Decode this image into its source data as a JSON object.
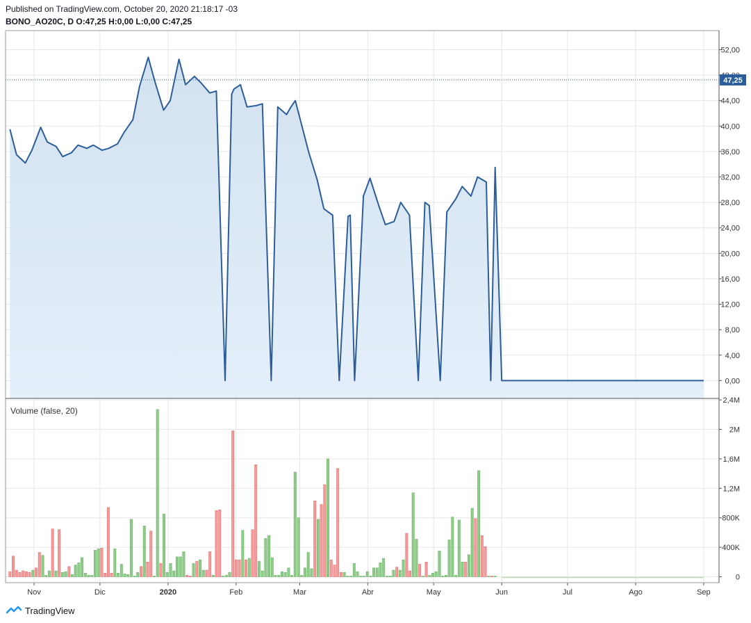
{
  "header": {
    "published": "Published on TradingView.com, October 20, 2020 21:18:17 -03",
    "symbol": "BONO_AO20C, D",
    "ohlc": "O:47,25 H:0,00 L:0,00 C:47,25"
  },
  "footer": {
    "brand": "TradingView"
  },
  "colors": {
    "line": "#2a5d99",
    "area": "#dbe8f5",
    "up": "#8fcc8a",
    "down": "#f49a9a",
    "grid": "#e6e6e6",
    "axis": "#555555",
    "lastPriceBg": "#2a5d99"
  },
  "chart_data": [
    {
      "type": "area",
      "symbol": "BONO_AO20C, D",
      "x": [
        "2019-10-21",
        "2019-10-24",
        "2019-10-28",
        "2019-10-31",
        "2019-11-04",
        "2019-11-07",
        "2019-11-11",
        "2019-11-14",
        "2019-11-18",
        "2019-11-21",
        "2019-11-25",
        "2019-11-28",
        "2019-12-02",
        "2019-12-05",
        "2019-12-09",
        "2019-12-12",
        "2019-12-16",
        "2019-12-19",
        "2019-12-23",
        "2019-12-26",
        "2019-12-30",
        "2020-01-02",
        "2020-01-06",
        "2020-01-09",
        "2020-01-13",
        "2020-01-16",
        "2020-01-20",
        "2020-01-23",
        "2020-01-27",
        "2020-01-30",
        "2020-01-31",
        "2020-02-03",
        "2020-02-06",
        "2020-02-10",
        "2020-02-13",
        "2020-02-17",
        "2020-02-20",
        "2020-02-24",
        "2020-02-26",
        "2020-02-28",
        "2020-03-02",
        "2020-03-05",
        "2020-03-09",
        "2020-03-12",
        "2020-03-16",
        "2020-03-19",
        "2020-03-23",
        "2020-03-24",
        "2020-03-26",
        "2020-03-30",
        "2020-04-02",
        "2020-04-06",
        "2020-04-09",
        "2020-04-13",
        "2020-04-16",
        "2020-04-20",
        "2020-04-24",
        "2020-04-27",
        "2020-04-29",
        "2020-05-04",
        "2020-05-07",
        "2020-05-11",
        "2020-05-14",
        "2020-05-18",
        "2020-05-21",
        "2020-05-25",
        "2020-05-27",
        "2020-05-29",
        "2020-06-01",
        "2020-09-01"
      ],
      "y": [
        39.5,
        35.5,
        34.2,
        36.2,
        39.8,
        37.5,
        36.8,
        35.2,
        35.8,
        37.0,
        36.5,
        37.0,
        36.2,
        36.5,
        37.2,
        39.0,
        41.0,
        46.2,
        50.8,
        47.0,
        42.5,
        44.0,
        50.5,
        46.5,
        47.8,
        46.8,
        45.2,
        45.5,
        0,
        45.0,
        45.8,
        46.5,
        43.0,
        43.2,
        43.5,
        0,
        43.0,
        41.8,
        43.0,
        44.0,
        40.0,
        36.0,
        31.5,
        27.0,
        26.0,
        0,
        25.8,
        26.0,
        0,
        29.0,
        31.8,
        27.5,
        24.5,
        25.0,
        28.0,
        26.0,
        0,
        28.0,
        27.5,
        0,
        26.5,
        28.5,
        30.5,
        29.0,
        32.0,
        31.2,
        0,
        33.5,
        0,
        0
      ],
      "ylim": [
        -2.8,
        55.0
      ],
      "ticks_y": [
        "0,00",
        "4,00",
        "8,00",
        "12,00",
        "16,00",
        "20,00",
        "24,00",
        "28,00",
        "32,00",
        "36,00",
        "40,00",
        "44,00",
        "48,00",
        "52,00"
      ],
      "last_price": "47,25",
      "last_price_value": 47.25
    },
    {
      "type": "bar",
      "title": "Volume (false, 20)",
      "ylim": [
        -0.08,
        2.42
      ],
      "ticks_y": [
        "0",
        "400K",
        "800K",
        "1,2M",
        "1,6M",
        "2M",
        "2,4M"
      ],
      "values": [
        0.07,
        0.28,
        0.09,
        0.06,
        0.08,
        0.07,
        0.06,
        0.09,
        0.12,
        0.33,
        0.29,
        0.02,
        0.08,
        0.65,
        0.08,
        0.64,
        0.06,
        0.07,
        0.14,
        0.03,
        0.16,
        0.19,
        0.26,
        0.05,
        0.02,
        0.02,
        0.36,
        0.38,
        0.39,
        0.05,
        0.94,
        0.05,
        0.38,
        0.05,
        0.17,
        0.04,
        0.03,
        0.78,
        0.01,
        0.06,
        0.14,
        0.69,
        0.2,
        0.62,
        0.01,
        2.27,
        0.18,
        0.85,
        0.06,
        0.18,
        0.08,
        0.27,
        0.27,
        0.34,
        0.02,
        0.01,
        0.18,
        0.21,
        0.23,
        0.09,
        0.09,
        0.34,
        0.02,
        0.9,
        0.91,
        0.01,
        0.02,
        0.06,
        1.98,
        0.23,
        0.23,
        0.63,
        0.23,
        0.25,
        0.64,
        1.52,
        0.21,
        0.08,
        0.52,
        0.56,
        0.26,
        0.02,
        0.02,
        0.07,
        0.06,
        0.12,
        0.02,
        1.42,
        0.8,
        0.02,
        0.12,
        0.33,
        0.11,
        1.03,
        0.78,
        0.98,
        1.25,
        1.6,
        0.23,
        0.16,
        1.47,
        0.06,
        0.06,
        0.01,
        0.01,
        0.18,
        0.07,
        0.01,
        0.01,
        0.07,
        0.01,
        0.12,
        0.12,
        0.19,
        0.25,
        0.01,
        0.01,
        0.09,
        0.13,
        0.09,
        0.23,
        0.59,
        0.08,
        1.14,
        0.51,
        0.17,
        0.01,
        0.2,
        0.02,
        0.05,
        0.07,
        0.35,
        0.01,
        0.02,
        0.5,
        0.81,
        0.02,
        0.77,
        0.2,
        0.2,
        0.3,
        0.93,
        0.79,
        1.44,
        0.56,
        0.41,
        0.01,
        0.01,
        0.01
      ],
      "colors_up_down": [
        "down",
        "down",
        "down",
        "down",
        "down",
        "down",
        "down",
        "up",
        "down",
        "down",
        "up",
        "up",
        "up",
        "down",
        "up",
        "down",
        "up",
        "up",
        "down",
        "up",
        "up",
        "up",
        "up",
        "up",
        "up",
        "up",
        "up",
        "up",
        "down",
        "down",
        "down",
        "down",
        "up",
        "up",
        "up",
        "up",
        "up",
        "up",
        "up",
        "up",
        "down",
        "up",
        "down",
        "down",
        "up",
        "up",
        "down",
        "up",
        "up",
        "up",
        "up",
        "up",
        "up",
        "up",
        "down",
        "down",
        "up",
        "down",
        "up",
        "up",
        "down",
        "down",
        "up",
        "down",
        "down",
        "up",
        "up",
        "up",
        "down",
        "down",
        "down",
        "up",
        "down",
        "up",
        "down",
        "down",
        "up",
        "up",
        "up",
        "up",
        "up",
        "up",
        "up",
        "up",
        "up",
        "up",
        "up",
        "up",
        "up",
        "up",
        "up",
        "up",
        "up",
        "down",
        "up",
        "down",
        "down",
        "up",
        "down",
        "down",
        "down",
        "down",
        "up",
        "up",
        "up",
        "up",
        "up",
        "up",
        "up",
        "up",
        "up",
        "up",
        "up",
        "up",
        "up",
        "up",
        "up",
        "up",
        "down",
        "up",
        "up",
        "down",
        "down",
        "up",
        "up",
        "down",
        "up",
        "down",
        "up",
        "up",
        "up",
        "up",
        "up",
        "up",
        "up",
        "up",
        "up",
        "up",
        "up",
        "down",
        "up",
        "up",
        "down",
        "up",
        "down",
        "down",
        "up",
        "down",
        "up",
        "up",
        "up",
        "up"
      ]
    }
  ],
  "x_axis_labels": [
    "Nov",
    "Dic",
    "2020",
    "Feb",
    "Mar",
    "Abr",
    "May",
    "Jun",
    "Jul",
    "Ago",
    "Sep"
  ]
}
